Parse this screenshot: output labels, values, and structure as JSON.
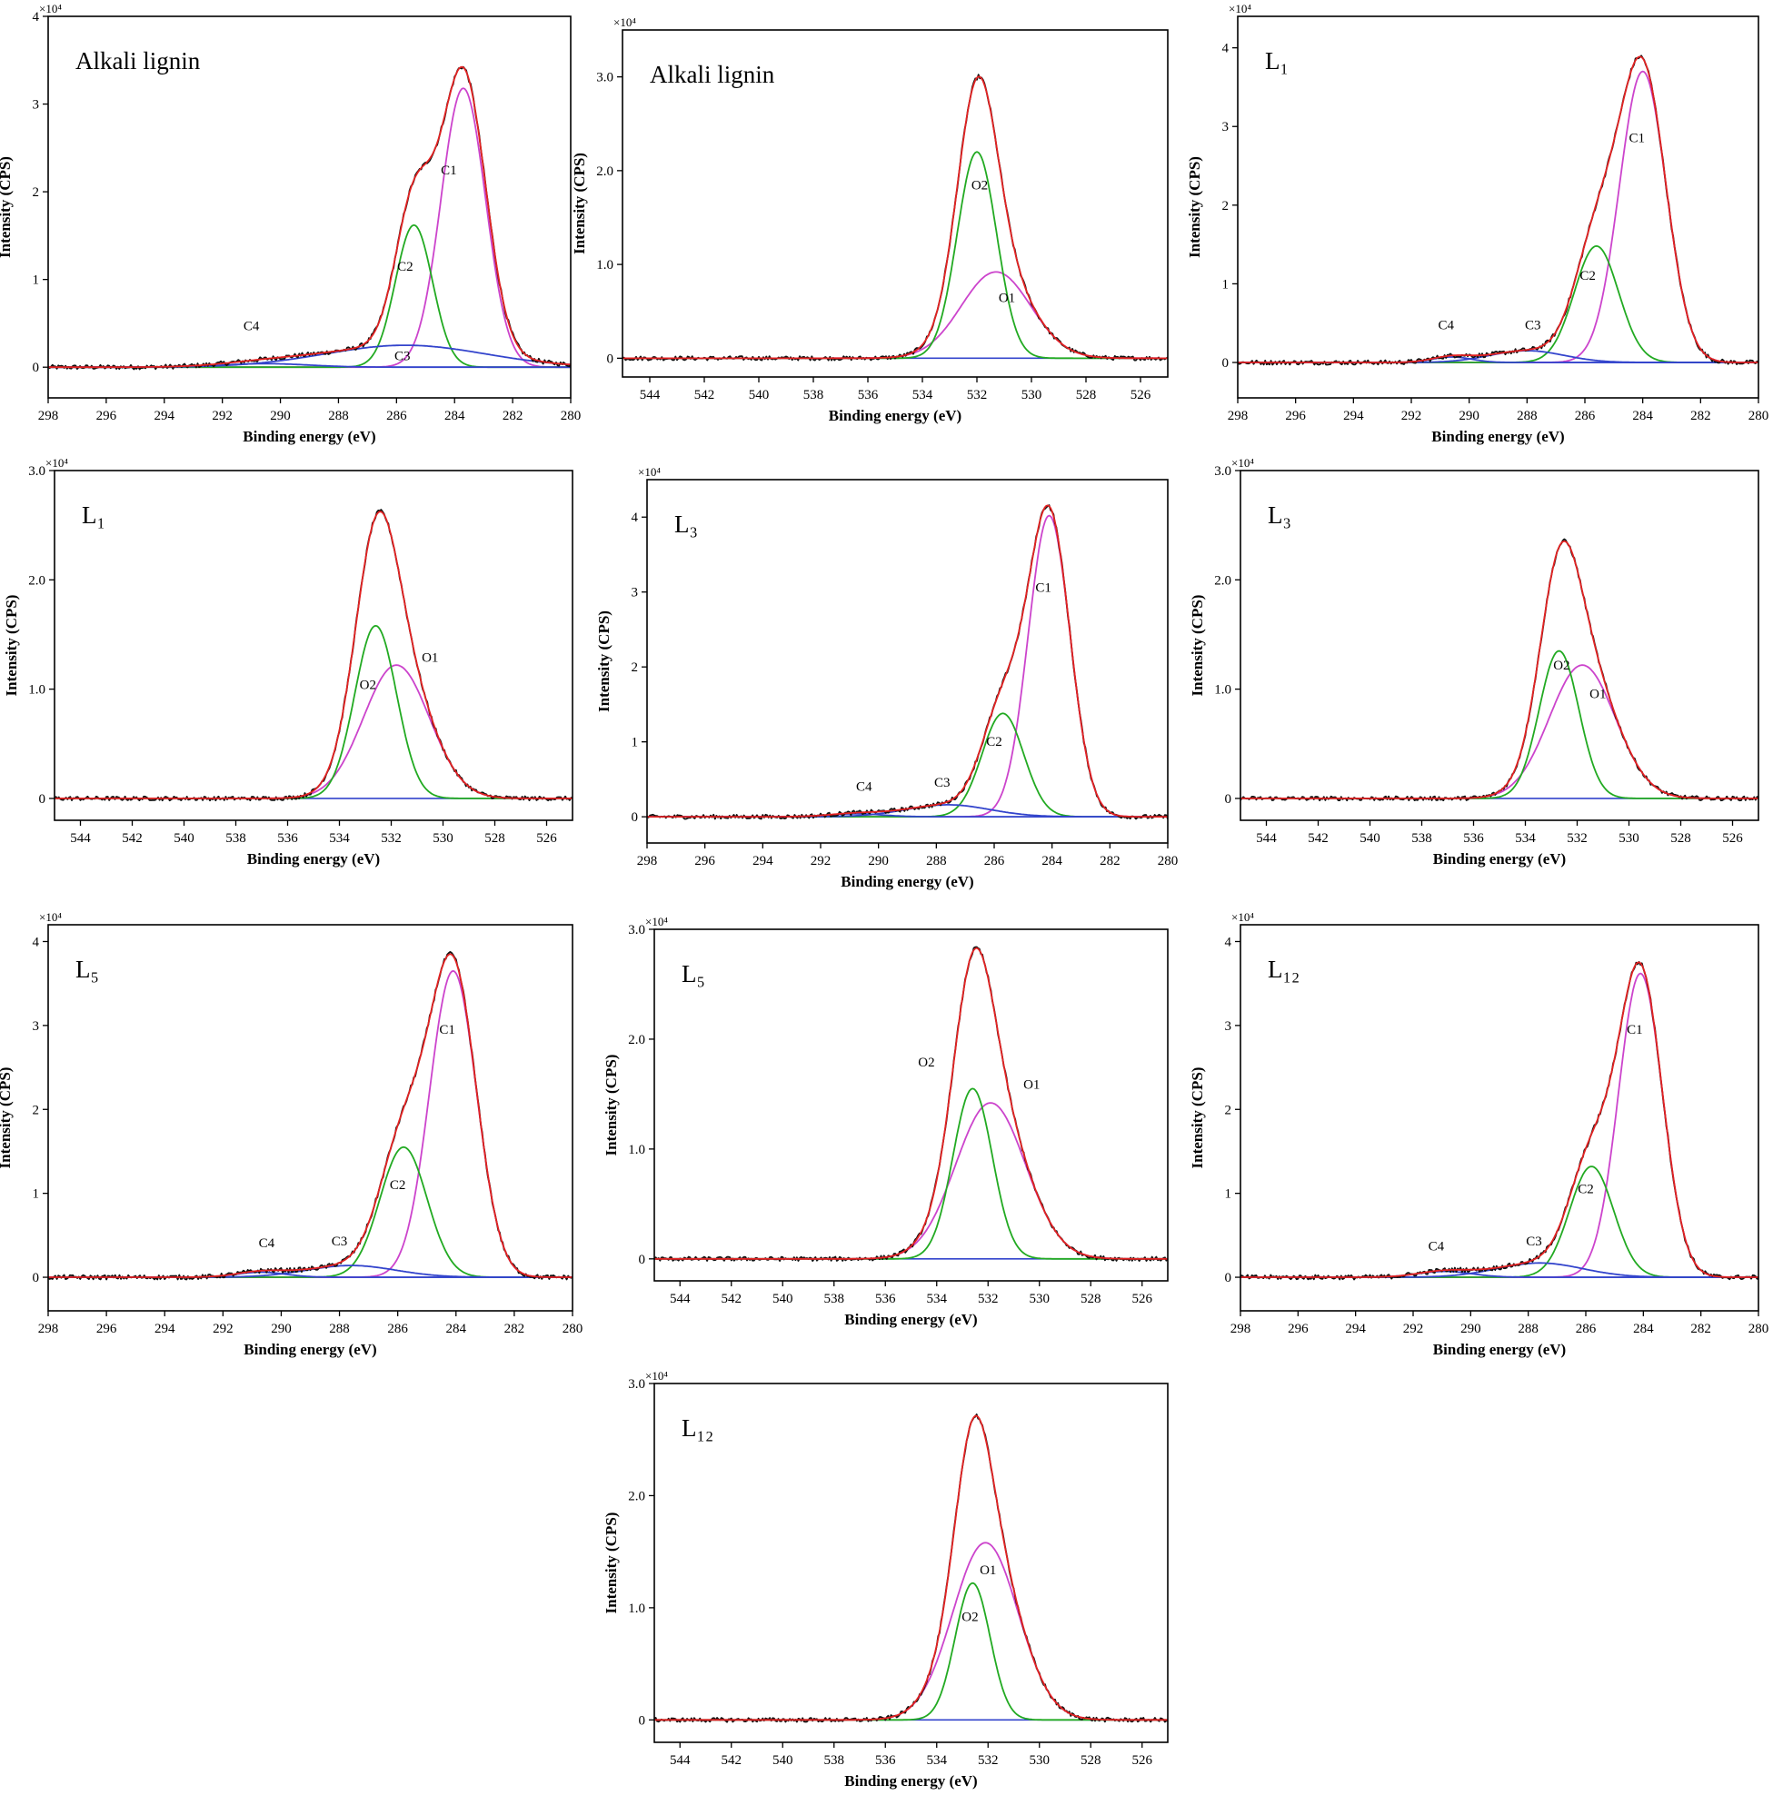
{
  "chart_data": [
    {
      "type": "line",
      "region": "C1s",
      "title": "Alkali lignin",
      "xlabel": "Binding energy (eV)",
      "ylabel": "Intensity (CPS)",
      "xlim": [
        298,
        280
      ],
      "ylim": [
        -0.35,
        4.0
      ],
      "y_multiplier": "×10⁴",
      "xticks": [
        "298",
        "296",
        "294",
        "292",
        "290",
        "288",
        "286",
        "284",
        "282",
        "280"
      ],
      "yticks": [
        "0",
        "1",
        "2",
        "3",
        "4"
      ],
      "ytick_values": [
        0,
        1,
        2,
        3,
        4
      ],
      "components": [
        {
          "name": "C1",
          "center": 283.7,
          "fwhm": 1.8,
          "height": 3.18,
          "color": "#cc44cc"
        },
        {
          "name": "C2",
          "center": 285.4,
          "fwhm": 1.5,
          "height": 1.62,
          "color": "#22aa22"
        },
        {
          "name": "C3",
          "center": 285.7,
          "fwhm": 6.5,
          "height": 0.25,
          "color": "#3344cc"
        },
        {
          "name": "C4",
          "center": 290.5,
          "fwhm": 3.5,
          "height": 0.04,
          "color": "#3344cc"
        }
      ],
      "annotations": [
        {
          "text": "C1",
          "x": 284.2,
          "y": 2.2
        },
        {
          "text": "C2",
          "x": 285.7,
          "y": 1.1
        },
        {
          "text": "C3",
          "x": 285.8,
          "y": 0.08
        },
        {
          "text": "C4",
          "x": 291.0,
          "y": 0.42
        }
      ]
    },
    {
      "type": "line",
      "region": "O1s",
      "title": "Alkali lignin",
      "xlabel": "Binding energy (eV)",
      "ylabel": "Intensity (CPS)",
      "xlim": [
        545,
        525
      ],
      "ylim": [
        -0.2,
        3.5
      ],
      "y_multiplier": "×10⁴",
      "xticks": [
        "544",
        "542",
        "540",
        "538",
        "536",
        "534",
        "532",
        "530",
        "528",
        "526"
      ],
      "yticks": [
        "0",
        "1.0",
        "2.0",
        "3.0"
      ],
      "ytick_values": [
        0,
        1,
        2,
        3
      ],
      "components": [
        {
          "name": "O1",
          "center": 531.3,
          "fwhm": 3.0,
          "height": 0.92,
          "color": "#cc44cc"
        },
        {
          "name": "O2",
          "center": 532.0,
          "fwhm": 1.7,
          "height": 2.2,
          "color": "#22aa22"
        }
      ],
      "annotations": [
        {
          "text": "O1",
          "x": 530.9,
          "y": 0.6
        },
        {
          "text": "O2",
          "x": 531.9,
          "y": 1.8
        }
      ]
    },
    {
      "type": "line",
      "region": "C1s",
      "title": "L₁",
      "xlabel": "Binding energy (eV)",
      "ylabel": "Intensity (CPS)",
      "xlim": [
        298,
        280
      ],
      "ylim": [
        -0.45,
        4.4
      ],
      "y_multiplier": "×10⁴",
      "xticks": [
        "298",
        "296",
        "294",
        "292",
        "290",
        "288",
        "286",
        "284",
        "282",
        "280"
      ],
      "yticks": [
        "0",
        "1",
        "2",
        "3",
        "4"
      ],
      "ytick_values": [
        0,
        1,
        2,
        3,
        4
      ],
      "components": [
        {
          "name": "C1",
          "center": 284.0,
          "fwhm": 1.9,
          "height": 3.7,
          "color": "#cc44cc"
        },
        {
          "name": "C2",
          "center": 285.6,
          "fwhm": 1.8,
          "height": 1.48,
          "color": "#22aa22"
        },
        {
          "name": "C3",
          "center": 288.0,
          "fwhm": 3.0,
          "height": 0.15,
          "color": "#3344cc"
        },
        {
          "name": "C4",
          "center": 290.6,
          "fwhm": 1.6,
          "height": 0.07,
          "color": "#3344cc"
        }
      ],
      "annotations": [
        {
          "text": "C1",
          "x": 284.2,
          "y": 2.8
        },
        {
          "text": "C2",
          "x": 285.9,
          "y": 1.05
        },
        {
          "text": "C3",
          "x": 287.8,
          "y": 0.42
        },
        {
          "text": "C4",
          "x": 290.8,
          "y": 0.42
        }
      ]
    },
    {
      "type": "line",
      "region": "O1s",
      "title": "L₁",
      "xlabel": "Binding energy (eV)",
      "ylabel": "Intensity (CPS)",
      "xlim": [
        545,
        525
      ],
      "ylim": [
        -0.2,
        3.0
      ],
      "y_multiplier": "×10⁴",
      "xticks": [
        "544",
        "542",
        "540",
        "538",
        "536",
        "534",
        "532",
        "530",
        "528",
        "526"
      ],
      "yticks": [
        "0",
        "1.0",
        "2.0",
        "3.0"
      ],
      "ytick_values": [
        0,
        1,
        2,
        3
      ],
      "components": [
        {
          "name": "O1",
          "center": 531.8,
          "fwhm": 3.0,
          "height": 1.22,
          "color": "#cc44cc"
        },
        {
          "name": "O2",
          "center": 532.6,
          "fwhm": 1.9,
          "height": 1.58,
          "color": "#22aa22"
        }
      ],
      "annotations": [
        {
          "text": "O1",
          "x": 530.5,
          "y": 1.25
        },
        {
          "text": "O2",
          "x": 532.9,
          "y": 1.0
        }
      ]
    },
    {
      "type": "line",
      "region": "C1s",
      "title": "L₃",
      "xlabel": "Binding energy (eV)",
      "ylabel": "Intensity (CPS)",
      "xlim": [
        298,
        280
      ],
      "ylim": [
        -0.35,
        4.5
      ],
      "y_multiplier": "×10⁴",
      "xticks": [
        "298",
        "296",
        "294",
        "292",
        "290",
        "288",
        "286",
        "284",
        "282",
        "280"
      ],
      "yticks": [
        "0",
        "1",
        "2",
        "3",
        "4"
      ],
      "ytick_values": [
        0,
        1,
        2,
        3,
        4
      ],
      "components": [
        {
          "name": "C1",
          "center": 284.1,
          "fwhm": 1.7,
          "height": 4.02,
          "color": "#cc44cc"
        },
        {
          "name": "C2",
          "center": 285.7,
          "fwhm": 1.7,
          "height": 1.38,
          "color": "#22aa22"
        },
        {
          "name": "C3",
          "center": 287.6,
          "fwhm": 3.4,
          "height": 0.16,
          "color": "#3344cc"
        },
        {
          "name": "C4",
          "center": 290.8,
          "fwhm": 2.2,
          "height": 0.04,
          "color": "#3344cc"
        }
      ],
      "annotations": [
        {
          "text": "C1",
          "x": 284.3,
          "y": 3.0
        },
        {
          "text": "C2",
          "x": 286.0,
          "y": 0.95
        },
        {
          "text": "C3",
          "x": 287.8,
          "y": 0.4
        },
        {
          "text": "C4",
          "x": 290.5,
          "y": 0.35
        }
      ]
    },
    {
      "type": "line",
      "region": "O1s",
      "title": "L₃",
      "xlabel": "Binding energy (eV)",
      "ylabel": "Intensity (CPS)",
      "xlim": [
        545,
        525
      ],
      "ylim": [
        -0.2,
        3.0
      ],
      "y_multiplier": "×10⁴",
      "xticks": [
        "544",
        "542",
        "540",
        "538",
        "536",
        "534",
        "532",
        "530",
        "528",
        "526"
      ],
      "yticks": [
        "0",
        "1.0",
        "2.0",
        "3.0"
      ],
      "ytick_values": [
        0,
        1,
        2,
        3
      ],
      "components": [
        {
          "name": "O1",
          "center": 531.8,
          "fwhm": 3.0,
          "height": 1.22,
          "color": "#cc44cc"
        },
        {
          "name": "O2",
          "center": 532.7,
          "fwhm": 1.8,
          "height": 1.35,
          "color": "#22aa22"
        }
      ],
      "annotations": [
        {
          "text": "O1",
          "x": 531.2,
          "y": 0.92
        },
        {
          "text": "O2",
          "x": 532.6,
          "y": 1.18
        }
      ]
    },
    {
      "type": "line",
      "region": "C1s",
      "title": "L₅",
      "xlabel": "Binding energy (eV)",
      "ylabel": "Intensity (CPS)",
      "xlim": [
        298,
        280
      ],
      "ylim": [
        -0.4,
        4.2
      ],
      "y_multiplier": "×10⁴",
      "xticks": [
        "298",
        "296",
        "294",
        "292",
        "290",
        "288",
        "286",
        "284",
        "282",
        "280"
      ],
      "yticks": [
        "0",
        "1",
        "2",
        "3",
        "4"
      ],
      "ytick_values": [
        0,
        1,
        2,
        3,
        4
      ],
      "components": [
        {
          "name": "C1",
          "center": 284.1,
          "fwhm": 1.9,
          "height": 3.65,
          "color": "#cc44cc"
        },
        {
          "name": "C2",
          "center": 285.8,
          "fwhm": 1.9,
          "height": 1.55,
          "color": "#22aa22"
        },
        {
          "name": "C3",
          "center": 287.6,
          "fwhm": 3.6,
          "height": 0.14,
          "color": "#3344cc"
        },
        {
          "name": "C4",
          "center": 290.7,
          "fwhm": 2.0,
          "height": 0.06,
          "color": "#3344cc"
        }
      ],
      "annotations": [
        {
          "text": "C1",
          "x": 284.3,
          "y": 2.9
        },
        {
          "text": "C2",
          "x": 286.0,
          "y": 1.05
        },
        {
          "text": "C3",
          "x": 288.0,
          "y": 0.38
        },
        {
          "text": "C4",
          "x": 290.5,
          "y": 0.36
        }
      ]
    },
    {
      "type": "line",
      "region": "O1s",
      "title": "L₅",
      "xlabel": "Binding energy (eV)",
      "ylabel": "Intensity (CPS)",
      "xlim": [
        545,
        525
      ],
      "ylim": [
        -0.2,
        3.0
      ],
      "y_multiplier": "×10⁴",
      "xticks": [
        "544",
        "542",
        "540",
        "538",
        "536",
        "534",
        "532",
        "530",
        "528",
        "526"
      ],
      "yticks": [
        "0",
        "1.0",
        "2.0",
        "3.0"
      ],
      "ytick_values": [
        0,
        1,
        2,
        3
      ],
      "components": [
        {
          "name": "O1",
          "center": 531.9,
          "fwhm": 3.2,
          "height": 1.42,
          "color": "#cc44cc"
        },
        {
          "name": "O2",
          "center": 532.6,
          "fwhm": 1.8,
          "height": 1.55,
          "color": "#22aa22"
        }
      ],
      "annotations": [
        {
          "text": "O1",
          "x": 530.3,
          "y": 1.55
        },
        {
          "text": "O2",
          "x": 534.4,
          "y": 1.75
        }
      ]
    },
    {
      "type": "line",
      "region": "C1s",
      "title": "L₁₂",
      "xlabel": "Binding energy (eV)",
      "ylabel": "Intensity (CPS)",
      "xlim": [
        298,
        280
      ],
      "ylim": [
        -0.4,
        4.2
      ],
      "y_multiplier": "×10⁴",
      "xticks": [
        "298",
        "296",
        "294",
        "292",
        "290",
        "288",
        "286",
        "284",
        "282",
        "280"
      ],
      "yticks": [
        "0",
        "1",
        "2",
        "3",
        "4"
      ],
      "ytick_values": [
        0,
        1,
        2,
        3,
        4
      ],
      "components": [
        {
          "name": "C1",
          "center": 284.1,
          "fwhm": 1.8,
          "height": 3.62,
          "color": "#cc44cc"
        },
        {
          "name": "C2",
          "center": 285.8,
          "fwhm": 1.8,
          "height": 1.32,
          "color": "#22aa22"
        },
        {
          "name": "C3",
          "center": 287.6,
          "fwhm": 3.5,
          "height": 0.17,
          "color": "#3344cc"
        },
        {
          "name": "C4",
          "center": 290.9,
          "fwhm": 2.2,
          "height": 0.07,
          "color": "#3344cc"
        }
      ],
      "annotations": [
        {
          "text": "C1",
          "x": 284.3,
          "y": 2.9
        },
        {
          "text": "C2",
          "x": 286.0,
          "y": 1.0
        },
        {
          "text": "C3",
          "x": 287.8,
          "y": 0.38
        },
        {
          "text": "C4",
          "x": 291.2,
          "y": 0.32
        }
      ]
    },
    {
      "type": "line",
      "region": "O1s",
      "title": "L₁₂",
      "xlabel": "Binding energy (eV)",
      "ylabel": "Intensity (CPS)",
      "xlim": [
        545,
        525
      ],
      "ylim": [
        -0.2,
        3.0
      ],
      "y_multiplier": "×10⁴",
      "xticks": [
        "544",
        "542",
        "540",
        "538",
        "536",
        "534",
        "532",
        "530",
        "528",
        "526"
      ],
      "yticks": [
        "0",
        "1.0",
        "2.0",
        "3.0"
      ],
      "ytick_values": [
        0,
        1,
        2,
        3
      ],
      "components": [
        {
          "name": "O1",
          "center": 532.1,
          "fwhm": 3.0,
          "height": 1.58,
          "color": "#cc44cc"
        },
        {
          "name": "O2",
          "center": 532.6,
          "fwhm": 1.6,
          "height": 1.22,
          "color": "#22aa22"
        }
      ],
      "annotations": [
        {
          "text": "O1",
          "x": 532.0,
          "y": 1.3
        },
        {
          "text": "O2",
          "x": 532.7,
          "y": 0.88
        }
      ]
    }
  ]
}
